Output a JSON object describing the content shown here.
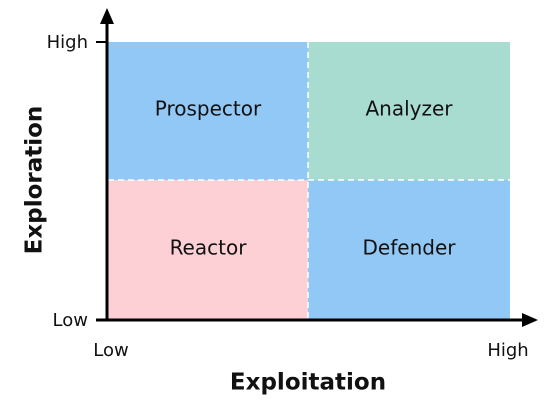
{
  "axes": {
    "x": {
      "title": "Exploitation",
      "low": "Low",
      "high": "High"
    },
    "y": {
      "title": "Exploration",
      "low": "Low",
      "high": "High"
    }
  },
  "quadrants": [
    {
      "label": "Prospector"
    },
    {
      "label": "Analyzer"
    },
    {
      "label": "Reactor"
    },
    {
      "label": "Defender"
    }
  ]
}
